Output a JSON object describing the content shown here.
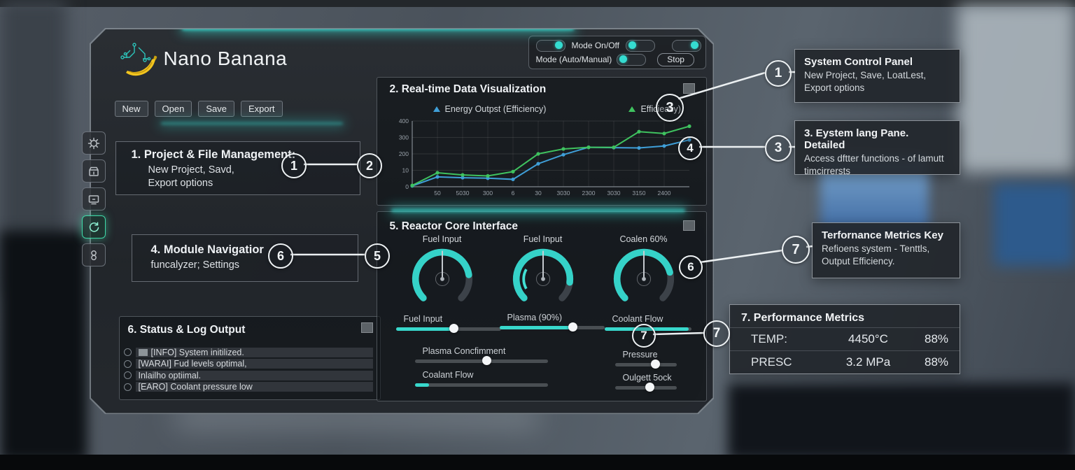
{
  "app": {
    "title": "Nano Banana"
  },
  "toolbar": {
    "buttons": [
      "New",
      "Open",
      "Save",
      "Export"
    ]
  },
  "mode_controls": {
    "row1_label": "Mode On/Off",
    "row2_label": "Mode (Auto/Manual)",
    "stop_label": "Stop",
    "toggles": [
      "on",
      "off",
      "on",
      "off"
    ]
  },
  "sidebar": {
    "items": [
      {
        "icon": "gear",
        "active": false
      },
      {
        "icon": "package",
        "active": false
      },
      {
        "icon": "display",
        "active": false
      },
      {
        "icon": "refresh",
        "active": true
      },
      {
        "icon": "link",
        "active": false
      }
    ]
  },
  "panels": {
    "project": {
      "title": "1. Project & File Management:",
      "line1": "New Project, Savd,",
      "line2": "Export options"
    },
    "module": {
      "title": "4. Module Navigatior",
      "line1": "funcalyzer; Settings"
    },
    "status": {
      "title": "6. Status & Log Output",
      "logs": [
        {
          "prefix_square": true,
          "text": "[INFO] System initilized."
        },
        {
          "prefix_square": false,
          "text": "[WARAI] Fud levels optimal,"
        },
        {
          "prefix_square": false,
          "text": "Inlailho optiimal."
        },
        {
          "prefix_square": false,
          "text": "[EARO] Coolant pressure low"
        }
      ]
    },
    "reactor": {
      "title": "5. Reactor Core Interface",
      "gauges": [
        {
          "label": "Fuel Input",
          "value": 0.8
        },
        {
          "label": "Fuel Input",
          "value": 0.86
        },
        {
          "label": "Coalen 60%",
          "value": 0.78
        }
      ],
      "sliders": [
        {
          "label": "Fuel Input",
          "value": 55,
          "accent": true,
          "knob": true
        },
        {
          "label": "Plasma  (90%)",
          "value": 70,
          "accent": true,
          "knob": true
        },
        {
          "label": "Coolant Flow",
          "value": 97,
          "accent": true,
          "knob": false
        },
        {
          "label": "Plasma Concfimment",
          "value": 54,
          "accent": false,
          "knob": true
        },
        {
          "label": "Pressure",
          "value": 66,
          "accent": false,
          "knob": true
        },
        {
          "label": "Coalant Flow",
          "value": 11,
          "accent": true,
          "knob": false
        },
        {
          "label": "Oulgett  5ock",
          "value": 57,
          "accent": false,
          "knob": true
        }
      ]
    }
  },
  "chart_data": {
    "type": "line",
    "title": "2. Real-time Data Visualization",
    "grid": true,
    "legend_position": "top",
    "ylim": [
      0,
      400
    ],
    "y_ticks": [
      "0",
      "10",
      "200",
      "300",
      "400"
    ],
    "x_ticks": [
      "50",
      "5030",
      "300",
      "6",
      "30",
      "3030",
      "2300",
      "3030",
      "3150",
      "2400"
    ],
    "series": [
      {
        "name": "Energy Outpst (Efficiency)",
        "color": "#3f9fd8",
        "marker": "triangle",
        "values": [
          5,
          60,
          55,
          52,
          45,
          140,
          195,
          240,
          238,
          236,
          248,
          285
        ]
      },
      {
        "name": "Efficieacy)",
        "color": "#3fc25f",
        "marker": "triangle",
        "values": [
          8,
          85,
          72,
          66,
          92,
          200,
          230,
          240,
          240,
          335,
          324,
          368
        ]
      }
    ]
  },
  "annotations": {
    "callouts": [
      "1",
      "2",
      "3",
      "4",
      "3",
      "6",
      "5",
      "6",
      "7",
      "7",
      "7",
      "1"
    ],
    "boxes": [
      {
        "title": "System Control Panel",
        "body": "New Project, Save, LoatLest, Export options"
      },
      {
        "title": "3. Eystem lang Pane. Detailed",
        "body": "Access dftter functions - of lamutt timcirrersts"
      },
      {
        "title": "Terfornance Metrics  Key",
        "body": "Refioens system - Tenttls, Output Efficiency."
      }
    ],
    "metrics": {
      "title": "7. Performance Metrics",
      "rows": [
        [
          "TEMP:",
          "4450°C",
          "88%"
        ],
        [
          "PRESC",
          "3.2 MPa",
          "88%"
        ]
      ]
    }
  },
  "colors": {
    "accent": "#38d8cc",
    "blue": "#3f9fd8",
    "green": "#3fc25f"
  }
}
